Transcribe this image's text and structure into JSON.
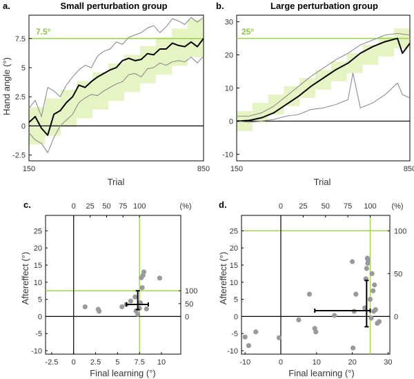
{
  "colors": {
    "green": "#9ad14b",
    "green_fill": "#e6f4c4",
    "black": "#000000",
    "grey": "#8c8c8c",
    "dot": "#9a9a9a"
  },
  "chart_data": [
    {
      "panel": "a.",
      "type": "line",
      "title": "Small perturbation group",
      "xlabel": "Trial",
      "ylabel": "Hand angle (°)",
      "xlim": [
        150,
        850
      ],
      "ylim": [
        -3,
        9.5
      ],
      "xticks": [
        "150",
        "850"
      ],
      "yticks": [
        "-2.5",
        "0",
        "2.5",
        "5",
        "7.5"
      ],
      "ytick_values": [
        -2.5,
        0,
        2.5,
        5,
        7.5
      ],
      "target_label": "7.5°",
      "target": 7.5,
      "perturbation_steps": {
        "start": 150,
        "end": 850,
        "n_steps": 11,
        "max": 7.5,
        "band": 1.6
      },
      "series": [
        {
          "name": "upper",
          "x": [
            150,
            175,
            200,
            225,
            250,
            275,
            300,
            325,
            350,
            375,
            400,
            425,
            450,
            475,
            500,
            525,
            550,
            575,
            600,
            625,
            650,
            675,
            700,
            725,
            750,
            775,
            800,
            825,
            850
          ],
          "values": [
            1.5,
            2.2,
            0.8,
            3.3,
            3.0,
            2.5,
            3.5,
            4.2,
            4.8,
            5.2,
            5.0,
            6.0,
            6.4,
            6.6,
            7.2,
            7.0,
            7.6,
            7.8,
            8.0,
            8.4,
            8.6,
            8.0,
            8.5,
            9.2,
            9.0,
            8.7,
            9.3,
            8.9,
            9.3
          ]
        },
        {
          "name": "mean",
          "x": [
            150,
            175,
            200,
            225,
            250,
            275,
            300,
            325,
            350,
            375,
            400,
            425,
            450,
            475,
            500,
            525,
            550,
            575,
            600,
            625,
            650,
            675,
            700,
            725,
            750,
            775,
            800,
            825,
            850
          ],
          "values": [
            0.3,
            0.8,
            -0.2,
            -0.8,
            1.0,
            1.3,
            2.0,
            2.5,
            3.5,
            3.3,
            3.8,
            4.2,
            4.5,
            4.8,
            5.0,
            5.6,
            5.8,
            5.6,
            5.7,
            6.2,
            6.1,
            6.6,
            6.6,
            7.1,
            6.9,
            6.8,
            7.2,
            6.8,
            7.5
          ]
        },
        {
          "name": "lower",
          "x": [
            150,
            175,
            200,
            225,
            250,
            275,
            300,
            325,
            350,
            375,
            400,
            425,
            450,
            475,
            500,
            525,
            550,
            575,
            600,
            625,
            650,
            675,
            700,
            725,
            750,
            775,
            800,
            825,
            850
          ],
          "values": [
            -0.6,
            -1.2,
            -1.5,
            -2.3,
            -1.0,
            0.0,
            0.5,
            1.0,
            2.0,
            2.4,
            2.7,
            2.6,
            3.0,
            3.3,
            3.6,
            3.8,
            4.4,
            4.5,
            4.2,
            4.9,
            5.0,
            5.4,
            5.2,
            5.5,
            5.6,
            5.5,
            5.9,
            5.4,
            6.0
          ]
        }
      ]
    },
    {
      "panel": "b.",
      "type": "line",
      "title": "Large perturbation group",
      "xlabel": "Trial",
      "ylabel": "",
      "xlim": [
        150,
        850
      ],
      "ylim": [
        -12,
        32
      ],
      "xticks": [
        "150",
        "850"
      ],
      "yticks": [
        "-10",
        "0",
        "10",
        "20",
        "30"
      ],
      "ytick_values": [
        -10,
        0,
        10,
        20,
        30
      ],
      "target_label": "25°",
      "target": 25,
      "perturbation_steps": {
        "start": 150,
        "end": 850,
        "n_steps": 11,
        "max": 25,
        "band": 3
      },
      "series": [
        {
          "name": "upper",
          "x": [
            150,
            200,
            250,
            300,
            350,
            400,
            450,
            500,
            550,
            600,
            650,
            700,
            750,
            800,
            850
          ],
          "values": [
            1.5,
            1.5,
            2.5,
            4.5,
            7.5,
            10.5,
            13.5,
            16.0,
            18.5,
            20.5,
            23.0,
            24.5,
            26.0,
            26.5,
            26.0
          ]
        },
        {
          "name": "mean",
          "x": [
            150,
            200,
            250,
            300,
            350,
            400,
            450,
            500,
            550,
            600,
            650,
            700,
            750,
            800,
            820,
            850
          ],
          "values": [
            0.0,
            0.2,
            1.0,
            2.5,
            5.0,
            7.5,
            10.5,
            13.0,
            15.5,
            17.5,
            20.5,
            22.5,
            24.0,
            25.0,
            20.5,
            23.5
          ]
        },
        {
          "name": "lower",
          "x": [
            150,
            200,
            250,
            300,
            350,
            400,
            450,
            500,
            550,
            600,
            620,
            650,
            700,
            750,
            800,
            820,
            850
          ],
          "values": [
            0.0,
            -0.3,
            0.0,
            0.5,
            1.5,
            2.0,
            3.5,
            4.0,
            5.0,
            6.5,
            14.5,
            4.0,
            5.5,
            8.0,
            11.5,
            8.0,
            7.0
          ]
        }
      ]
    },
    {
      "panel": "c.",
      "type": "scatter",
      "xlabel": "Final learning (°)",
      "ylabel": "Aftereffect (°)",
      "xlim": [
        -3.2,
        12.2
      ],
      "ylim": [
        -11,
        29.5
      ],
      "xticks": [
        "-2.5",
        "0",
        "2.5",
        "5",
        "7.5",
        "10"
      ],
      "xtick_values": [
        -2.5,
        0,
        2.5,
        5,
        7.5,
        10
      ],
      "yticks": [
        "-10",
        "-5",
        "0",
        "5",
        "10",
        "15",
        "20",
        "25"
      ],
      "ytick_values": [
        -10,
        -5,
        0,
        5,
        10,
        15,
        20,
        25
      ],
      "top_ticks": [
        "0",
        "25",
        "50",
        "75",
        "100"
      ],
      "top_tick_values": [
        0,
        25,
        50,
        75,
        100
      ],
      "right_ticks": [
        "0",
        "50",
        "100"
      ],
      "right_tick_values": [
        0,
        50,
        100
      ],
      "percent_label": "(%)",
      "target": 7.5,
      "points": [
        [
          1.3,
          2.8
        ],
        [
          2.8,
          2.1
        ],
        [
          2.9,
          1.5
        ],
        [
          5.5,
          2.8
        ],
        [
          6.0,
          3.5
        ],
        [
          6.5,
          4.5
        ],
        [
          7.0,
          5.7
        ],
        [
          7.1,
          1.6
        ],
        [
          7.3,
          0.6
        ],
        [
          7.5,
          2.4
        ],
        [
          7.6,
          4.0
        ],
        [
          7.7,
          11.3
        ],
        [
          7.8,
          8.4
        ],
        [
          7.9,
          12.0
        ],
        [
          8.0,
          13.0
        ],
        [
          8.3,
          2.2
        ],
        [
          9.8,
          11.2
        ]
      ],
      "mean": [
        7.3,
        3.5
      ],
      "error_x": [
        6.0,
        8.5
      ],
      "error_y": [
        2.0,
        7.5
      ]
    },
    {
      "panel": "d.",
      "type": "scatter",
      "xlabel": "Final learning (°)",
      "ylabel": "Aftereffect (°)",
      "xlim": [
        -11,
        30.5
      ],
      "ylim": [
        -11,
        29.5
      ],
      "xticks": [
        "-10",
        "0",
        "10",
        "20",
        "30"
      ],
      "xtick_values": [
        -10,
        0,
        10,
        20,
        30
      ],
      "yticks": [
        "-10",
        "-5",
        "0",
        "5",
        "10",
        "15",
        "20",
        "25"
      ],
      "ytick_values": [
        -10,
        -5,
        0,
        5,
        10,
        15,
        20,
        25
      ],
      "top_ticks": [
        "0",
        "25",
        "50",
        "75",
        "100"
      ],
      "top_tick_values": [
        0,
        25,
        50,
        75,
        100
      ],
      "right_ticks": [
        "0",
        "50",
        "100"
      ],
      "right_tick_values": [
        0,
        50,
        100
      ],
      "percent_label": "(%)",
      "target": 25,
      "points": [
        [
          -10.0,
          -6.0
        ],
        [
          -9.0,
          -8.5
        ],
        [
          -7.0,
          -4.5
        ],
        [
          -0.5,
          -6.2
        ],
        [
          5.0,
          -1.0
        ],
        [
          8.0,
          6.5
        ],
        [
          9.5,
          -3.5
        ],
        [
          9.8,
          -4.5
        ],
        [
          15.0,
          0.3
        ],
        [
          20.0,
          16.0
        ],
        [
          20.2,
          -9.2
        ],
        [
          20.5,
          1.5
        ],
        [
          21.0,
          6.5
        ],
        [
          23.5,
          2.5
        ],
        [
          23.8,
          11.0
        ],
        [
          24.0,
          14.0
        ],
        [
          24.2,
          17.0
        ],
        [
          24.3,
          15.5
        ],
        [
          24.4,
          16.5
        ],
        [
          25.0,
          5.0
        ],
        [
          25.3,
          -0.5
        ],
        [
          25.5,
          12.5
        ],
        [
          25.8,
          7.5
        ],
        [
          26.0,
          1.5
        ],
        [
          26.2,
          9.2
        ],
        [
          26.5,
          2.0
        ],
        [
          27.0,
          -2.0
        ],
        [
          27.5,
          -1.5
        ]
      ],
      "mean": [
        24.0,
        1.7
      ],
      "error_x": [
        9.5,
        25.0
      ],
      "error_y": [
        -3.0,
        10.5
      ]
    }
  ]
}
